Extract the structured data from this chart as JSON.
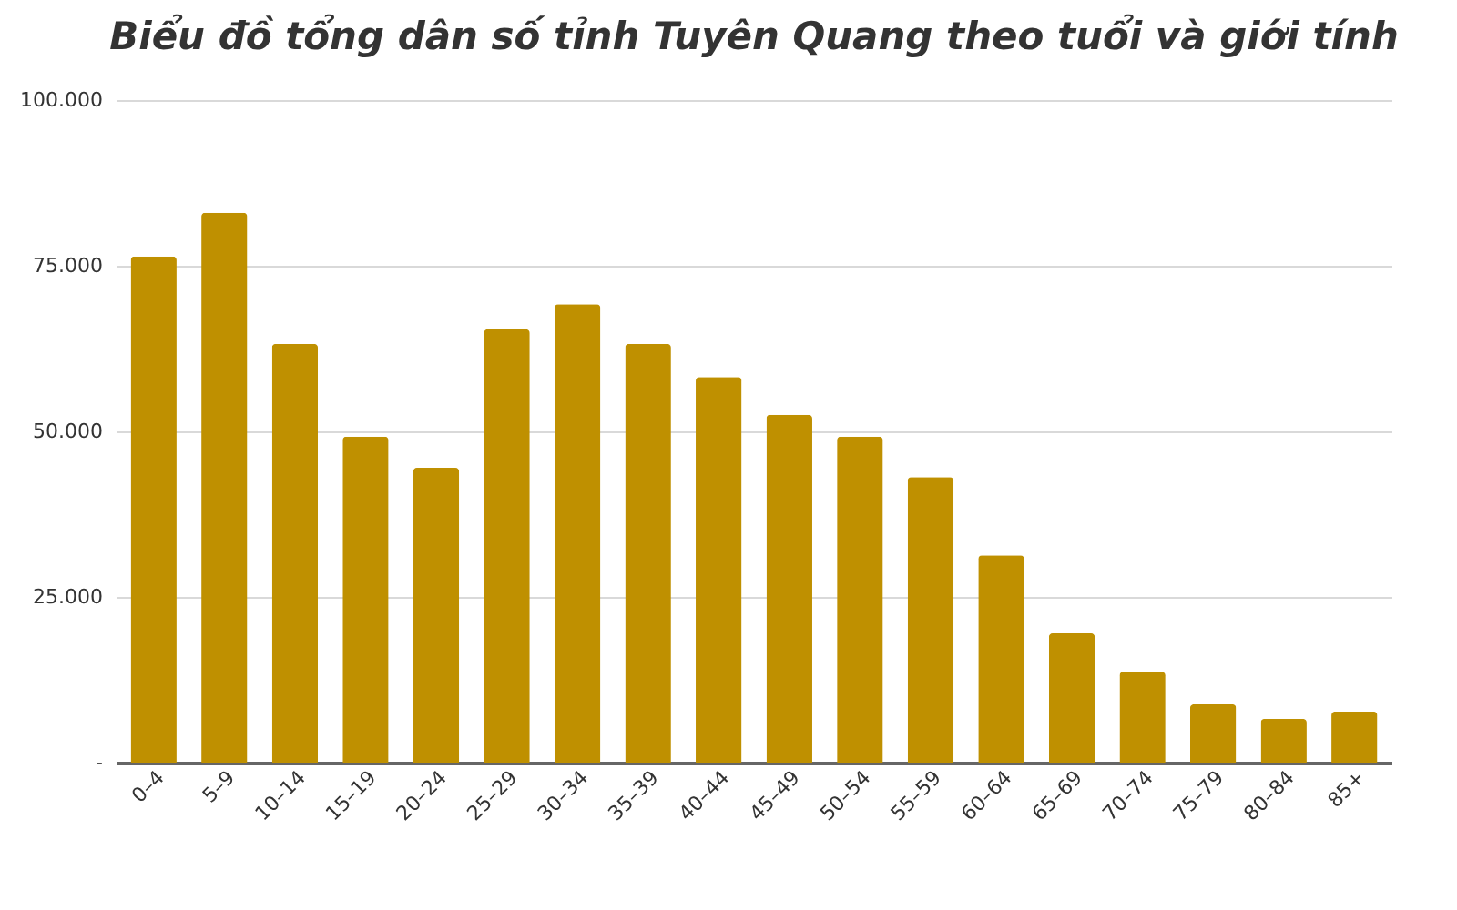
{
  "chart_data": {
    "type": "bar",
    "title": "Biểu đồ tổng dân số tỉnh Tuyên Quang theo tuổi và giới tính",
    "categories": [
      "0–4",
      "5–9",
      "10–14",
      "15–19",
      "20–24",
      "25–29",
      "30–34",
      "35–39",
      "40–44",
      "45–49",
      "50–54",
      "55–59",
      "60–64",
      "65–69",
      "70–74",
      "75–79",
      "80–84",
      "85+"
    ],
    "values": [
      76400,
      83000,
      63200,
      49200,
      44500,
      65400,
      69200,
      63200,
      58200,
      52500,
      49200,
      43100,
      31300,
      19500,
      13700,
      8800,
      6600,
      7700
    ],
    "color": "#bf9000",
    "ylim": [
      0,
      100000
    ],
    "yticks": [
      {
        "value": 0,
        "label": "-"
      },
      {
        "value": 25000,
        "label": "25.000"
      },
      {
        "value": 50000,
        "label": "50.000"
      },
      {
        "value": 75000,
        "label": "75.000"
      },
      {
        "value": 100000,
        "label": "100.000"
      }
    ],
    "grid": "y"
  }
}
